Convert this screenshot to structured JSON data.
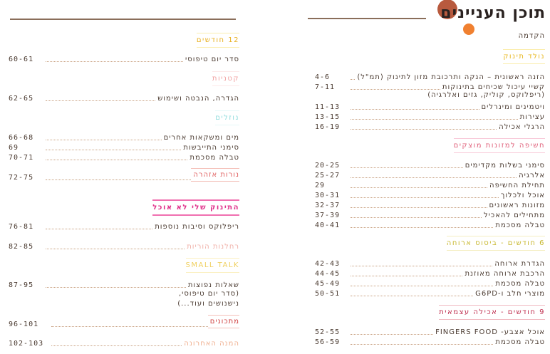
{
  "right_page": {
    "title": "תוכן העניינים",
    "intro": "הקדמה",
    "sections": [
      {
        "header": "נולד תינוק",
        "color": "#e8b820",
        "entries": [
          {
            "title": "הזנה ראשונית – הנקה ותרכובת מזון לתינוק (תמ\"ל)",
            "pages": "4-6"
          },
          {
            "title": "קשיי עיכול שכיחים בתינוקות",
            "title_line2": "(ריפלוקס, קוליק, גזים ואלרגיה)",
            "pages": "7-11"
          },
          {
            "title": "ויטמינים ומינרלים",
            "pages": "11-13"
          },
          {
            "title": "עצירות",
            "pages": "13-15"
          },
          {
            "title": "הרגלי אכילה",
            "pages": "16-19"
          }
        ]
      },
      {
        "header": "חשיפה למזונות מוצקים",
        "color": "#e0607a",
        "entries": [
          {
            "title": "סימני בשלות מקדימים",
            "pages": "20-25"
          },
          {
            "title": "אלרגיה",
            "pages": "25-27"
          },
          {
            "title": "תחילת החשיפה",
            "pages": "29"
          },
          {
            "title": "אוכל ולכלוך",
            "pages": "30-31"
          },
          {
            "title": "מזונות ראשונים",
            "pages": "32-37"
          },
          {
            "title": "מתחילים להאכיל",
            "pages": "37-39"
          },
          {
            "title": "טבלה מסכמת",
            "pages": "40-41"
          }
        ]
      },
      {
        "header": "6 חודשים - ביסוס ארוחה",
        "color": "#c8b830",
        "entries": [
          {
            "title": "הגדרת ארוחה",
            "pages": "42-43"
          },
          {
            "title": "הרכבת ארוחה מאוזנת",
            "pages": "44-45"
          },
          {
            "title": "טבלה מסכמת",
            "pages": "45-49"
          },
          {
            "title": "מוצרי חלב ו-G6PD",
            "pages": "50-51"
          }
        ]
      },
      {
        "header": "9 חודשים - אכילה עצמאית",
        "color": "#c03050",
        "entries": [
          {
            "title": "אוכל אצבע- FINGERS FOOD",
            "pages": "52-55"
          },
          {
            "title": "טבלה מסכמת",
            "pages": "56-59"
          }
        ]
      }
    ]
  },
  "left_page": {
    "sections": [
      {
        "header": "12 חודשים",
        "color": "#e8b020",
        "entries": [
          {
            "title": "סדר יום טיפוסי",
            "pages": "60-61"
          }
        ]
      },
      {
        "header": "קטניות",
        "color": "#f0a0a0",
        "entries": [
          {
            "title": "הגדרה, הנבטה ושימוש",
            "pages": "62-65"
          }
        ]
      },
      {
        "header": "נוזלים",
        "color": "#90dcdc",
        "entries": [
          {
            "title": "מים ומשקאות אחרים",
            "pages": "66-68"
          },
          {
            "title": "סימני התייבשות",
            "pages": "69"
          },
          {
            "title": "טבלה מסכמת",
            "pages": "70-71"
          }
        ]
      },
      {
        "header": "נורות אזהרה",
        "color": "#e06060",
        "pages": "72-75"
      },
      {
        "header": "התינוק שלי לא אוכל",
        "color": "#e0308a",
        "entries": [
          {
            "title": "ריפלוקס וסיבות נוספות",
            "pages": "76-81"
          }
        ]
      },
      {
        "header": "רחלנות הוריות",
        "color": "#f0b0a8",
        "pages": "82-85"
      },
      {
        "header": "SMALL TALK",
        "color": "#f0d060",
        "entries": [
          {
            "title": "שאלות נפוצות",
            "title_line2": "(סדר יום טיפוסי,",
            "title_line3": "נישנושים ועוד...)",
            "pages": "87-95"
          }
        ]
      },
      {
        "header": "מתכונים",
        "color": "#d04040",
        "pages": "96-101"
      },
      {
        "header": "המנה האחרונה",
        "color": "#f0b090",
        "pages": "102-103"
      }
    ]
  },
  "colors": {
    "text": "#4a3a30",
    "circle_large": "#b85a3e",
    "circle_small": "#f08030"
  }
}
